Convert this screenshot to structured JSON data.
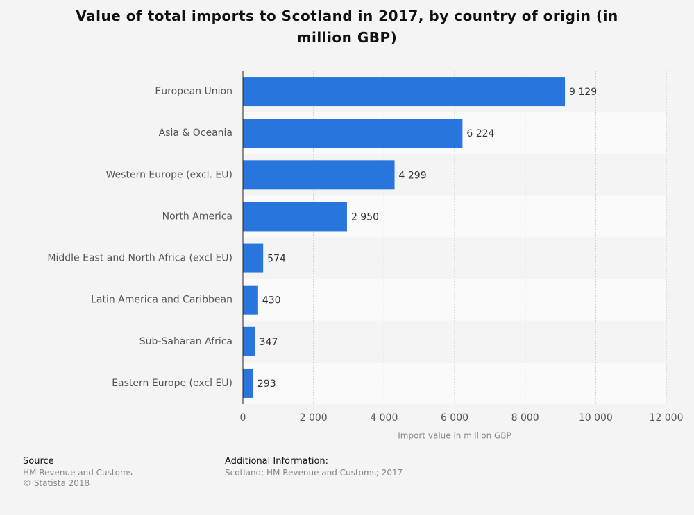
{
  "chart_data": {
    "type": "hbar",
    "title": "Value of total imports to Scotland in 2017, by country of origin (in million GBP)",
    "x_label": "Import value in million GBP",
    "categories": [
      "European Union",
      "Asia & Oceania",
      "Western Europe (excl. EU)",
      "North America",
      "Middle East and North Africa (excl EU)",
      "Latin America and Caribbean",
      "Sub-Saharan Africa",
      "Eastern Europe (excl EU)"
    ],
    "values": [
      9129,
      6224,
      4299,
      2950,
      574,
      430,
      347,
      293
    ],
    "value_labels": [
      "9 129",
      "6 224",
      "4 299",
      "2 950",
      "574",
      "430",
      "347",
      "293"
    ],
    "color": "#2876dd",
    "xlim": [
      0,
      12000
    ],
    "xticks": [
      0,
      {
        "value": 2000,
        "label": "2 000"
      },
      {
        "value": 4000,
        "label": "4 000"
      },
      {
        "value": 6000,
        "label": "6 000"
      },
      {
        "value": 8000,
        "label": "8 000"
      },
      {
        "value": 10000,
        "label": "10 000"
      },
      {
        "value": 12000,
        "label": "12 000"
      }
    ],
    "grid": true
  },
  "source": {
    "heading": "Source",
    "lines": [
      "HM Revenue and Customs",
      "© Statista 2018"
    ]
  },
  "additional_info": {
    "heading": "Additional Information:",
    "text": "Scotland; HM Revenue and Customs; 2017"
  }
}
